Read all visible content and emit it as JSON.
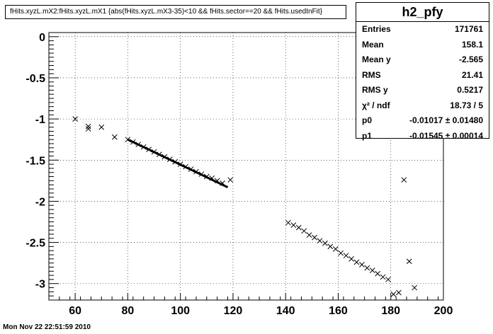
{
  "title": "fHits.xyzL.mX2:fHits.xyzL.mX1 {abs(fHits.xyzL.mX3-35)<10 && fHits.sector==20 && fHits.usedInFit}",
  "timestamp": "Mon Nov 22 22:51:59 2010",
  "stats": {
    "name": "h2_pfy",
    "rows": [
      {
        "label": "Entries",
        "value": "171761"
      },
      {
        "label": "Mean",
        "value": "158.1"
      },
      {
        "label": "Mean y",
        "value": "-2.565"
      },
      {
        "label": "RMS",
        "value": "21.41"
      },
      {
        "label": "RMS y",
        "value": "0.5217"
      },
      {
        "label": "χ² / ndf",
        "value": "18.73 / 5"
      },
      {
        "label": "p0",
        "value": "-0.01017 ± 0.01480"
      },
      {
        "label": "p1",
        "value": "-0.01545 ± 0.00014"
      }
    ]
  },
  "chart_data": {
    "type": "scatter",
    "marker": "x",
    "grid": true,
    "xlim": [
      50,
      200
    ],
    "ylim": [
      -3.2,
      0.05
    ],
    "x_ticks": [
      60,
      80,
      100,
      120,
      140,
      160,
      180,
      200
    ],
    "y_ticks": [
      0,
      -0.5,
      -1,
      -1.5,
      -2,
      -2.5,
      -3
    ],
    "x_tick_labels": [
      "60",
      "80",
      "100",
      "120",
      "140",
      "160",
      "180",
      "200"
    ],
    "y_tick_labels": [
      "0",
      "-0.5",
      "-1",
      "-1.5",
      "-2",
      "-2.5",
      "-3"
    ],
    "fit_line": {
      "x": [
        80,
        118
      ],
      "y": [
        -1.25,
        -1.83
      ]
    },
    "series": [
      {
        "x": [
          60,
          65,
          65,
          70,
          75,
          80,
          82,
          84,
          86,
          88,
          90,
          92,
          94,
          96,
          98,
          100,
          102,
          104,
          106,
          108,
          110,
          112,
          114,
          116,
          119,
          141,
          143,
          145,
          147,
          149,
          151,
          153,
          155,
          157,
          159,
          161,
          163,
          165,
          167,
          169,
          171,
          173,
          175,
          177,
          179,
          181,
          183,
          185,
          187,
          189
        ],
        "y": [
          -1.0,
          -1.12,
          -1.09,
          -1.1,
          -1.22,
          -1.25,
          -1.28,
          -1.31,
          -1.34,
          -1.37,
          -1.4,
          -1.43,
          -1.46,
          -1.49,
          -1.52,
          -1.55,
          -1.58,
          -1.61,
          -1.64,
          -1.67,
          -1.7,
          -1.72,
          -1.75,
          -1.78,
          -1.74,
          -2.26,
          -2.29,
          -2.32,
          -2.36,
          -2.41,
          -2.44,
          -2.48,
          -2.51,
          -2.55,
          -2.58,
          -2.63,
          -2.66,
          -2.7,
          -2.74,
          -2.77,
          -2.81,
          -2.84,
          -2.88,
          -2.92,
          -2.95,
          -3.13,
          -3.11,
          -1.74,
          -2.73,
          -3.05
        ]
      }
    ]
  }
}
